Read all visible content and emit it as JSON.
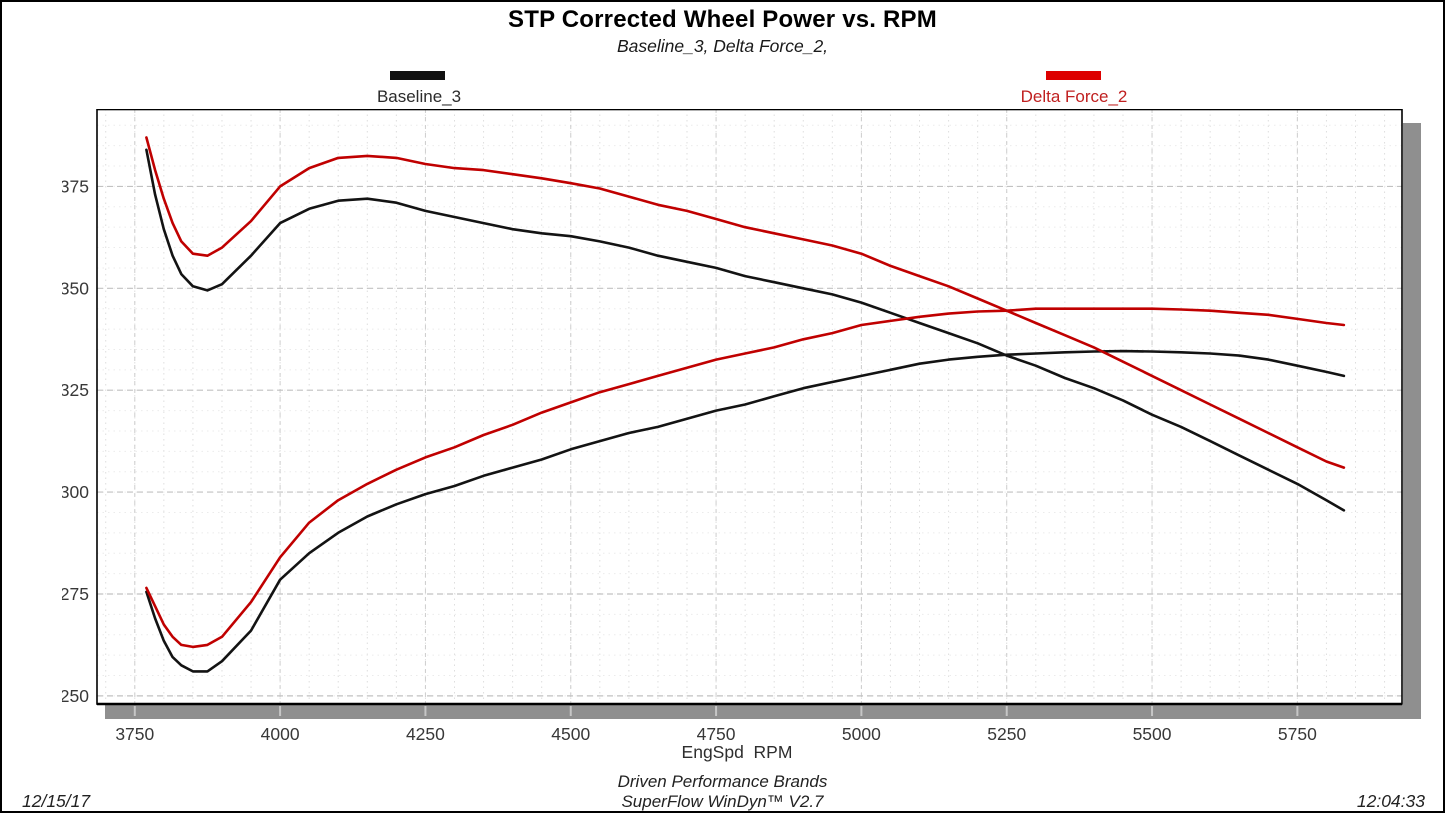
{
  "title": "STP Corrected Wheel Power vs. RPM",
  "subtitle": "Baseline_3, Delta Force_2,",
  "legend": [
    {
      "label": "Baseline_3",
      "color": "#111111",
      "text_color": "#2b2b2b"
    },
    {
      "label": "Delta Force_2",
      "color": "#dd0000",
      "text_color": "#c02020"
    }
  ],
  "footer": {
    "date": "12/15/17",
    "time": "12:04:33",
    "brand_line1": "Driven Performance Brands",
    "brand_line2": "SuperFlow WinDyn™  V2.7"
  },
  "chart_data": {
    "type": "line",
    "title": "STP Corrected Wheel Power vs. RPM",
    "subtitle": "Baseline_3, Delta Force_2,",
    "xlabel": "EngSpd  RPM",
    "ylabel": "",
    "xlim": [
      3685,
      5930
    ],
    "ylim": [
      248,
      394
    ],
    "x_ticks": [
      3750,
      4000,
      4250,
      4500,
      4750,
      5000,
      5250,
      5500,
      5750
    ],
    "y_ticks": [
      250,
      275,
      300,
      325,
      350,
      375
    ],
    "x_minor_step": 50,
    "y_minor_step": 5,
    "grid": true,
    "legend_position": "top",
    "colors": {
      "baseline": "#131313",
      "delta": "#c00000"
    },
    "x": [
      3770,
      3785,
      3800,
      3815,
      3830,
      3850,
      3875,
      3900,
      3950,
      4000,
      4050,
      4100,
      4150,
      4200,
      4250,
      4300,
      4350,
      4400,
      4450,
      4500,
      4550,
      4600,
      4650,
      4700,
      4750,
      4800,
      4850,
      4900,
      4950,
      5000,
      5050,
      5100,
      5150,
      5200,
      5250,
      5300,
      5350,
      5400,
      5450,
      5500,
      5550,
      5600,
      5650,
      5700,
      5750,
      5800,
      5830
    ],
    "series": [
      {
        "name": "Baseline_3 (torque)",
        "color": "#131313",
        "values": [
          384,
          373,
          364.5,
          358,
          353.5,
          350.5,
          349.5,
          351,
          358,
          366,
          369.5,
          371.5,
          372,
          371,
          369,
          367.5,
          366,
          364.5,
          363.5,
          362.8,
          361.5,
          360,
          358,
          356.5,
          355,
          353,
          351.5,
          350,
          348.5,
          346.5,
          344,
          341.5,
          339,
          336.5,
          333.5,
          331,
          328,
          325.5,
          322.5,
          319,
          316,
          312.5,
          309,
          305.5,
          302,
          298,
          295.5
        ]
      },
      {
        "name": "Baseline_3 (power)",
        "color": "#131313",
        "values": [
          275.5,
          269,
          263.5,
          259.5,
          257.5,
          256,
          256,
          258.5,
          266,
          278.5,
          285,
          290,
          294,
          297,
          299.5,
          301.5,
          304,
          306,
          308,
          310.5,
          312.5,
          314.5,
          316,
          318,
          320,
          321.5,
          323.5,
          325.5,
          327,
          328.5,
          330,
          331.5,
          332.5,
          333.2,
          333.7,
          334,
          334.3,
          334.5,
          334.6,
          334.5,
          334.3,
          334,
          333.5,
          332.5,
          331,
          329.5,
          328.5
        ]
      },
      {
        "name": "Delta Force_2 (torque)",
        "color": "#c00000",
        "values": [
          387,
          379,
          372,
          366,
          361.5,
          358.5,
          358,
          360,
          366.5,
          375,
          379.5,
          382,
          382.5,
          382,
          380.5,
          379.5,
          379,
          378,
          377,
          375.8,
          374.5,
          372.5,
          370.5,
          369,
          367,
          365,
          363.5,
          362,
          360.5,
          358.5,
          355.5,
          353,
          350.5,
          347.5,
          344.5,
          341.5,
          338.5,
          335.5,
          332,
          328.5,
          325,
          321.5,
          318,
          314.5,
          311,
          307.5,
          306
        ]
      },
      {
        "name": "Delta Force_2 (power)",
        "color": "#c00000",
        "values": [
          276.5,
          272,
          267.5,
          264.5,
          262.5,
          262,
          262.5,
          264.5,
          273,
          284,
          292.5,
          298,
          302,
          305.5,
          308.5,
          311,
          314,
          316.5,
          319.5,
          322,
          324.5,
          326.5,
          328.5,
          330.5,
          332.5,
          334,
          335.5,
          337.5,
          339,
          341,
          342,
          343,
          343.8,
          344.3,
          344.5,
          345,
          345,
          345,
          345,
          345,
          344.8,
          344.5,
          344,
          343.5,
          342.5,
          341.5,
          341
        ]
      }
    ]
  }
}
